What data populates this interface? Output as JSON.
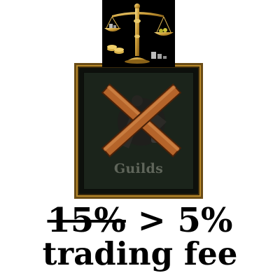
{
  "scale_icon": {
    "icon": "balance-scale-icon"
  },
  "guild_button": {
    "label": "Guilds",
    "icon": "guild-emblem-icon",
    "overlay_icon": "crossed-out-x-icon",
    "disabled": true
  },
  "caption": {
    "old_fee": "15%",
    "separator": ">",
    "new_fee": "5%",
    "label": "trading fee"
  },
  "colors": {
    "frame_gold": "#b8892a",
    "panel_bg": "#1b241b",
    "cross_wood": "#b5642a",
    "label_disabled": "#5f655a"
  }
}
